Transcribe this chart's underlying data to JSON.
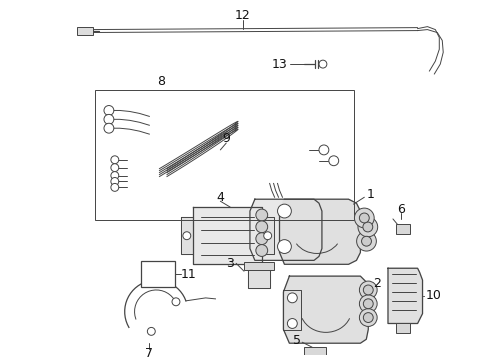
{
  "bg_color": "#ffffff",
  "line_color": "#444444",
  "label_color": "#111111",
  "lw_main": 1.2,
  "lw_thin": 0.7,
  "lw_med": 0.9,
  "figsize": [
    4.9,
    3.6
  ],
  "dpi": 100
}
